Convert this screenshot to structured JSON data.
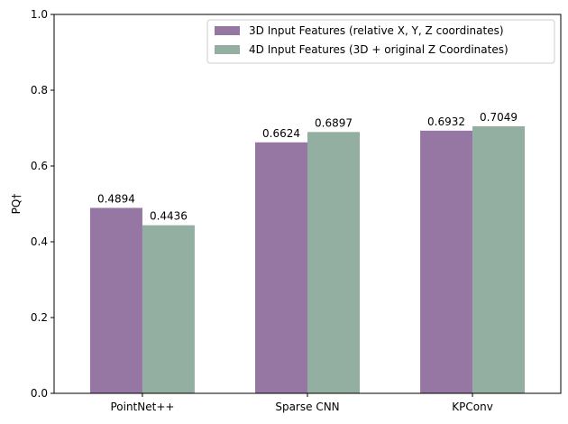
{
  "chart_data": {
    "type": "bar",
    "title": "",
    "xlabel": "",
    "ylabel": "PQ†",
    "ylim": [
      0,
      1.0
    ],
    "yticks": [
      "0.0",
      "0.2",
      "0.4",
      "0.6",
      "0.8",
      "1.0"
    ],
    "ytick_values": [
      0,
      0.2,
      0.4,
      0.6,
      0.8,
      1.0
    ],
    "categories": [
      "PointNet++",
      "Sparse CNN",
      "KPConv"
    ],
    "grid": false,
    "legend_position": "top-right",
    "series": [
      {
        "name": "3D Input Features (relative X, Y, Z coordinates)",
        "color": "#9676a3",
        "values": [
          0.4894,
          0.6624,
          0.6932
        ],
        "labels": [
          "0.4894",
          "0.6624",
          "0.6932"
        ]
      },
      {
        "name": "4D Input Features (3D + original Z Coordinates)",
        "color": "#93afa1",
        "values": [
          0.4436,
          0.6897,
          0.7049
        ],
        "labels": [
          "0.4436",
          "0.6897",
          "0.7049"
        ]
      }
    ]
  }
}
